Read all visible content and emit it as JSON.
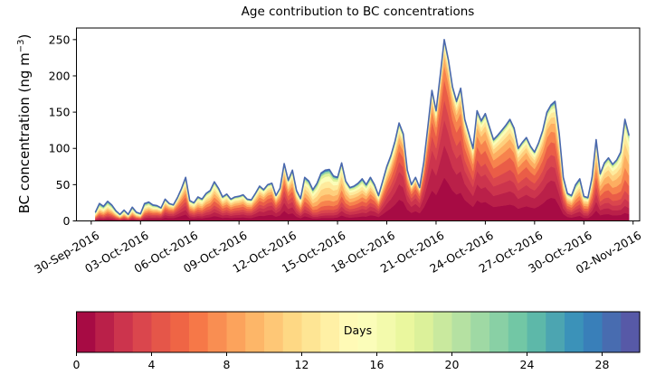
{
  "title": "Age contribution to BC concentrations",
  "y_axis": {
    "label_prefix": "BC concentration (ng m",
    "label_sup": "−3",
    "label_suffix": ")",
    "ticks": [
      0,
      50,
      100,
      150,
      200,
      250
    ],
    "value_max": 266
  },
  "x_axis": {
    "tick_labels": [
      "30-Sep-2016",
      "03-Oct-2016",
      "06-Oct-2016",
      "09-Oct-2016",
      "12-Oct-2016",
      "15-Oct-2016",
      "18-Oct-2016",
      "21-Oct-2016",
      "24-Oct-2016",
      "27-Oct-2016",
      "30-Oct-2016",
      "02-Nov-2016"
    ],
    "tick_days": [
      0,
      3,
      6,
      9,
      12,
      15,
      18,
      21,
      24,
      27,
      30,
      33
    ],
    "domain_days": [
      -0.9,
      33.4
    ]
  },
  "colorbar": {
    "label": "Days",
    "ticks": [
      0,
      4,
      8,
      12,
      16,
      20,
      24,
      28
    ],
    "n_bins": 30,
    "range": [
      0,
      30
    ]
  },
  "colormap_anchors": [
    "#9e0142",
    "#d53e4f",
    "#f46d43",
    "#fdae61",
    "#fee08b",
    "#ffffbf",
    "#e6f598",
    "#abdda4",
    "#66c2a5",
    "#3288bd",
    "#5e4fa2"
  ],
  "outline_color": "#4a68ad",
  "chart_data": {
    "type": "area",
    "stacked": true,
    "x_unit": "days since 30-Sep-2016 00:00",
    "y_unit": "ng m-3",
    "time_start_day": 0.25,
    "time_step_days": 0.25,
    "total": [
      12,
      24,
      20,
      27,
      22,
      14,
      9,
      15,
      9,
      19,
      12,
      10,
      24,
      26,
      22,
      21,
      18,
      30,
      24,
      22,
      32,
      45,
      60,
      28,
      25,
      33,
      30,
      38,
      42,
      54,
      45,
      33,
      37,
      30,
      33,
      34,
      36,
      30,
      29,
      38,
      48,
      43,
      50,
      52,
      35,
      45,
      79,
      56,
      70,
      42,
      31,
      60,
      55,
      43,
      52,
      66,
      70,
      71,
      62,
      60,
      80,
      55,
      46,
      48,
      52,
      58,
      50,
      60,
      50,
      35,
      55,
      75,
      90,
      110,
      135,
      120,
      70,
      50,
      60,
      46,
      80,
      130,
      180,
      152,
      200,
      250,
      222,
      185,
      165,
      183,
      140,
      120,
      100,
      152,
      138,
      148,
      130,
      112,
      118,
      125,
      132,
      140,
      128,
      100,
      108,
      115,
      103,
      95,
      108,
      125,
      150,
      160,
      165,
      120,
      60,
      38,
      35,
      50,
      58,
      34,
      32,
      60,
      112,
      65,
      80,
      87,
      78,
      84,
      95,
      140,
      118
    ],
    "age_bands": [
      {
        "label": "0-1",
        "color": "#a70b44"
      },
      {
        "label": "1-2",
        "color": "#ba2049"
      },
      {
        "label": "2-3",
        "color": "#cc344d"
      },
      {
        "label": "3-4",
        "color": "#da464d"
      },
      {
        "label": "4-6",
        "color": "#ea5d47"
      },
      {
        "label": "6-8",
        "color": "#f7834d"
      },
      {
        "label": "8-10",
        "color": "#fdae61"
      },
      {
        "label": "10-12",
        "color": "#fecf7d"
      },
      {
        "label": "12-14",
        "color": "#feea9c"
      },
      {
        "label": "14-17",
        "color": "#fbfdb9"
      },
      {
        "label": "17-20",
        "color": "#dcf19a"
      },
      {
        "label": "20-24",
        "color": "#94d4a4"
      },
      {
        "label": "24-30",
        "color": "#3288bd"
      }
    ],
    "composition_control_days": [
      -1,
      3,
      5,
      6.5,
      8,
      10,
      11.75,
      12.5,
      13.8,
      14.6,
      15.3,
      16.5,
      18.8,
      21.5,
      23.8,
      25.5,
      28,
      29.5,
      30.75,
      32.5,
      34
    ],
    "composition": [
      [
        9,
        7,
        7,
        7,
        9,
        9,
        9,
        8,
        8,
        9,
        7,
        6,
        5
      ],
      [
        9,
        7,
        7,
        7,
        9,
        9,
        9,
        8,
        8,
        9,
        7,
        6,
        5
      ],
      [
        18,
        13,
        11,
        9,
        11,
        9,
        8,
        6,
        5,
        4,
        3,
        2,
        1
      ],
      [
        12,
        9,
        9,
        8,
        10,
        10,
        9,
        8,
        8,
        7,
        5,
        3,
        2
      ],
      [
        13,
        10,
        9,
        9,
        11,
        10,
        9,
        8,
        7,
        6,
        4,
        2,
        2
      ],
      [
        15,
        12,
        10,
        9,
        11,
        10,
        8,
        7,
        6,
        5,
        3,
        2,
        2
      ],
      [
        18,
        14,
        12,
        10,
        11,
        9,
        7,
        6,
        5,
        4,
        2,
        1,
        1
      ],
      [
        14,
        11,
        10,
        9,
        11,
        10,
        8,
        7,
        6,
        5,
        4,
        3,
        2
      ],
      [
        6,
        5,
        5,
        6,
        8,
        10,
        12,
        13,
        12,
        10,
        6,
        4,
        3
      ],
      [
        6,
        5,
        5,
        6,
        8,
        10,
        12,
        13,
        12,
        10,
        6,
        4,
        3
      ],
      [
        10,
        8,
        8,
        8,
        10,
        11,
        12,
        11,
        9,
        6,
        4,
        2,
        1
      ],
      [
        11,
        9,
        9,
        8,
        10,
        10,
        9,
        8,
        8,
        7,
        5,
        3,
        3
      ],
      [
        22,
        16,
        13,
        10,
        11,
        8,
        6,
        4,
        3,
        3,
        2,
        1,
        1
      ],
      [
        24,
        18,
        14,
        11,
        11,
        8,
        5,
        3,
        2,
        2,
        1,
        0.5,
        0.5
      ],
      [
        18,
        14,
        12,
        10,
        12,
        10,
        8,
        5,
        4,
        3,
        2,
        1,
        1
      ],
      [
        16,
        13,
        11,
        10,
        12,
        10,
        8,
        6,
        5,
        4,
        2,
        1,
        1
      ],
      [
        20,
        15,
        12,
        10,
        11,
        9,
        7,
        5,
        4,
        3,
        2,
        1,
        1
      ],
      [
        12,
        10,
        9,
        8,
        10,
        10,
        9,
        8,
        7,
        6,
        5,
        3,
        3
      ],
      [
        13,
        11,
        10,
        9,
        12,
        11,
        10,
        8,
        6,
        4,
        3,
        2,
        1
      ],
      [
        8,
        7,
        7,
        8,
        11,
        12,
        13,
        11,
        9,
        7,
        4,
        2,
        1
      ],
      [
        8,
        7,
        7,
        8,
        11,
        12,
        13,
        11,
        9,
        7,
        4,
        2,
        1
      ]
    ]
  }
}
